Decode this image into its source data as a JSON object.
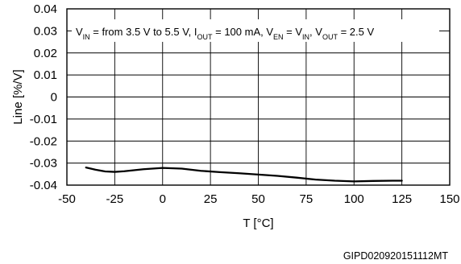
{
  "chart_data": {
    "type": "line",
    "title": "",
    "xlabel": "T [°C]",
    "ylabel": "Line [%/V]",
    "xlim": [
      -50,
      150
    ],
    "ylim": [
      -0.04,
      0.04
    ],
    "xticks": [
      -50,
      -25,
      0,
      25,
      50,
      75,
      100,
      125,
      150
    ],
    "xtick_labels": [
      "-50",
      "-25",
      "0",
      "25",
      "50",
      "75",
      "100",
      "125",
      "150"
    ],
    "yticks": [
      -0.04,
      -0.03,
      -0.02,
      -0.01,
      0,
      0.01,
      0.02,
      0.03,
      0.04
    ],
    "ytick_labels": [
      "-0.04",
      "-0.03",
      "-0.02",
      "-0.01",
      "0",
      "0.01",
      "0.02",
      "0.03",
      "0.04"
    ],
    "grid": true,
    "legend": "none",
    "series": [
      {
        "color": "#000000",
        "x": [
          -40,
          -35,
          -30,
          -25,
          -20,
          -10,
          0,
          10,
          20,
          30,
          40,
          50,
          60,
          70,
          80,
          90,
          100,
          110,
          120,
          125
        ],
        "y": [
          -0.032,
          -0.033,
          -0.0338,
          -0.034,
          -0.0337,
          -0.0328,
          -0.0322,
          -0.0325,
          -0.0335,
          -0.0341,
          -0.0346,
          -0.0352,
          -0.0358,
          -0.0366,
          -0.0375,
          -0.038,
          -0.0383,
          -0.0381,
          -0.038,
          -0.038
        ]
      }
    ],
    "annotation": {
      "parts": [
        {
          "t": "V"
        },
        {
          "t": "IN",
          "sub": true
        },
        {
          "t": " = from 3.5 V to 5.5 V, I"
        },
        {
          "t": "OUT",
          "sub": true
        },
        {
          "t": " = 100 mA, V"
        },
        {
          "t": "EN",
          "sub": true
        },
        {
          "t": " = V"
        },
        {
          "t": "IN",
          "sub": true
        },
        {
          "t": ", V"
        },
        {
          "t": "OUT",
          "sub": true
        },
        {
          "t": " = 2.5 V"
        }
      ]
    },
    "figure_code": "GIPD020920151112MT"
  }
}
